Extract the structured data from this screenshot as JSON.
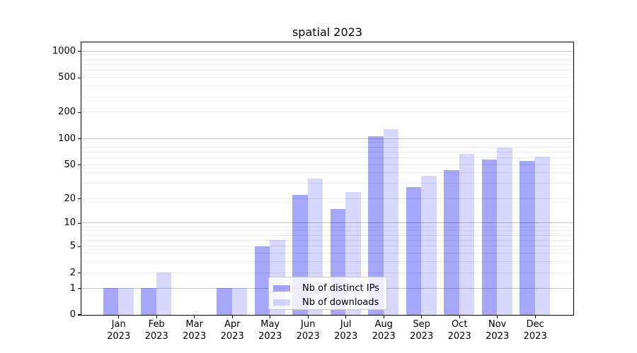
{
  "title": "spatial 2023",
  "legend": {
    "items": [
      {
        "label": "Nb of distinct IPs"
      },
      {
        "label": "Nb of downloads"
      }
    ]
  },
  "colors": {
    "bar_distinct_ips": "rgba(10,10,240,0.36)",
    "bar_downloads": "rgba(10,10,240,0.16)",
    "grid_major": "#c3c3c3",
    "grid_minor": "#eaeaea",
    "axis": "#000000"
  },
  "chart_data": {
    "type": "bar",
    "title": "spatial 2023",
    "categories": [
      "Jan 2023",
      "Feb 2023",
      "Mar 2023",
      "Apr 2023",
      "May 2023",
      "Jun 2023",
      "Jul 2023",
      "Aug 2023",
      "Sep 2023",
      "Oct 2023",
      "Nov 2023",
      "Dec 2023"
    ],
    "series": [
      {
        "name": "Nb of distinct IPs",
        "values": [
          1,
          1,
          0,
          1,
          5,
          22,
          15,
          107,
          27,
          43,
          57,
          55
        ]
      },
      {
        "name": "Nb of downloads",
        "values": [
          1,
          2,
          0,
          1,
          6,
          34,
          24,
          128,
          37,
          67,
          79,
          62
        ]
      }
    ],
    "y_scale": "log10(value+1)",
    "y_tick_labels": [
      0,
      1,
      2,
      5,
      10,
      20,
      50,
      100,
      200,
      500,
      1000
    ],
    "y_major_gridlines": [
      1,
      10,
      100,
      1000
    ],
    "ylim": [
      0,
      1280
    ],
    "grid": true,
    "legend_position": "lower center"
  }
}
